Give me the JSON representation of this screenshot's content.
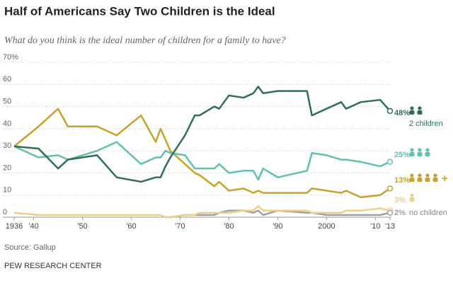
{
  "chart_data": {
    "type": "line",
    "title": "Half of Americans Say Two Children is the Ideal",
    "subtitle": "What do you think is the ideal number of children for a family to have?",
    "source": "Source: Gallup",
    "publisher": "PEW RESEARCH CENTER",
    "x": [
      1936,
      1941,
      1945,
      1947,
      1953,
      1957,
      1962,
      1965,
      1966,
      1967,
      1968,
      1971,
      1973,
      1974,
      1977,
      1978,
      1980,
      1983,
      1985,
      1986,
      1987,
      1990,
      1996,
      1997,
      2000,
      2003,
      2004,
      2007,
      2011,
      2013
    ],
    "xlim": [
      1936,
      2013
    ],
    "xticks": [
      {
        "value": 1936,
        "label": "1936"
      },
      {
        "value": 1940,
        "label": "'40"
      },
      {
        "value": 1950,
        "label": "'50"
      },
      {
        "value": 1960,
        "label": "'60"
      },
      {
        "value": 1970,
        "label": "'70"
      },
      {
        "value": 1980,
        "label": "'80"
      },
      {
        "value": 1990,
        "label": "'90"
      },
      {
        "value": 2000,
        "label": "2000"
      },
      {
        "value": 2010,
        "label": "'10"
      },
      {
        "value": 2013,
        "label": "'13"
      }
    ],
    "ylim": [
      0,
      70
    ],
    "yticks": [
      0,
      10,
      20,
      30,
      40,
      50,
      60,
      {
        "value": 70,
        "label": "70%"
      }
    ],
    "grid": true,
    "series": [
      {
        "name": "2 children",
        "icons": 2,
        "color": "#326e55",
        "values": [
          32,
          31,
          22,
          26,
          28,
          18,
          16,
          18,
          18,
          23,
          27,
          37,
          46,
          46,
          50,
          49,
          55,
          54,
          56,
          59,
          56,
          57,
          57,
          46,
          49,
          52,
          49,
          52,
          53,
          48
        ],
        "value_labels": [
          null,
          null,
          null,
          null,
          null,
          null,
          null,
          null,
          null,
          null,
          null,
          null,
          null,
          null,
          null,
          null,
          null,
          null,
          null,
          null,
          null,
          null,
          null,
          null,
          null,
          null,
          null,
          null,
          null,
          "48%"
        ]
      },
      {
        "icons": 3,
        "color": "#62c0ae",
        "values": [
          32,
          27,
          28,
          26,
          30,
          34,
          24,
          27,
          27,
          30,
          29,
          28,
          22,
          22,
          22,
          24,
          20,
          21,
          21,
          17,
          22,
          18,
          21,
          29,
          28,
          26,
          26,
          25,
          23,
          25
        ],
        "value_labels": [
          null,
          null,
          null,
          null,
          null,
          null,
          null,
          null,
          null,
          null,
          null,
          null,
          null,
          null,
          null,
          null,
          null,
          null,
          null,
          null,
          null,
          null,
          null,
          null,
          null,
          null,
          null,
          null,
          null,
          "25%"
        ]
      },
      {
        "name": "+",
        "icons": 4,
        "color": "#c9a22c",
        "values": [
          32,
          41,
          49,
          41,
          41,
          37,
          46,
          34,
          40,
          35,
          30,
          24,
          20,
          19,
          14,
          16,
          12,
          13,
          11,
          12,
          11,
          11,
          11,
          13,
          12,
          11,
          12,
          9,
          10,
          13
        ],
        "value_labels": [
          null,
          null,
          null,
          null,
          null,
          null,
          null,
          null,
          null,
          null,
          null,
          null,
          null,
          null,
          null,
          null,
          null,
          null,
          null,
          null,
          null,
          null,
          null,
          null,
          null,
          null,
          null,
          null,
          null,
          "13%"
        ]
      },
      {
        "icons": 1,
        "color": "#ecd08a",
        "values": [
          2,
          1,
          1,
          1,
          1,
          1,
          1,
          1,
          1,
          0,
          0,
          1,
          1,
          2,
          2,
          2,
          2,
          3,
          3,
          5,
          3,
          3,
          3,
          2,
          2,
          2,
          3,
          3,
          4,
          3
        ],
        "value_labels": [
          null,
          null,
          null,
          null,
          null,
          null,
          null,
          null,
          null,
          null,
          null,
          null,
          null,
          null,
          null,
          null,
          null,
          null,
          null,
          null,
          null,
          null,
          null,
          null,
          null,
          null,
          null,
          null,
          null,
          "3%"
        ]
      },
      {
        "name": "no children",
        "icons": 0,
        "color": "#a0a0a0",
        "values": [
          null,
          null,
          null,
          null,
          null,
          null,
          null,
          null,
          null,
          0,
          0,
          1,
          1,
          1,
          1,
          2,
          3,
          3,
          2,
          3,
          1,
          3,
          2,
          2,
          1,
          1,
          1,
          1,
          1,
          2
        ],
        "value_labels": [
          null,
          null,
          null,
          null,
          null,
          null,
          null,
          null,
          null,
          null,
          null,
          null,
          null,
          null,
          null,
          null,
          null,
          null,
          null,
          null,
          null,
          null,
          null,
          null,
          null,
          null,
          null,
          null,
          null,
          "2%"
        ]
      }
    ]
  }
}
